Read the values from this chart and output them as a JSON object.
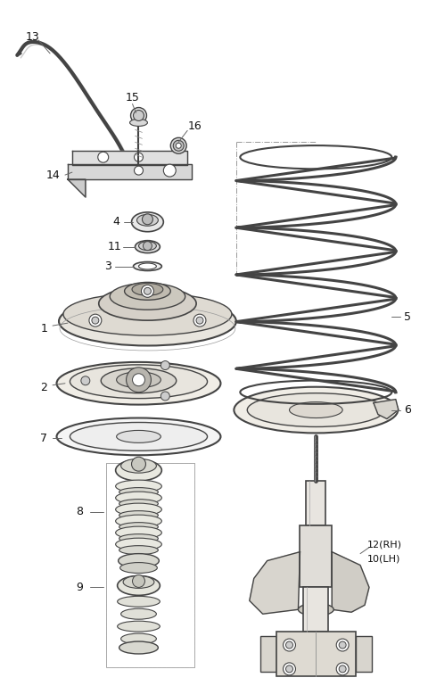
{
  "bg_color": "#ffffff",
  "line_color": "#444444",
  "label_color": "#111111",
  "fig_width": 4.8,
  "fig_height": 7.69,
  "dpi": 100
}
